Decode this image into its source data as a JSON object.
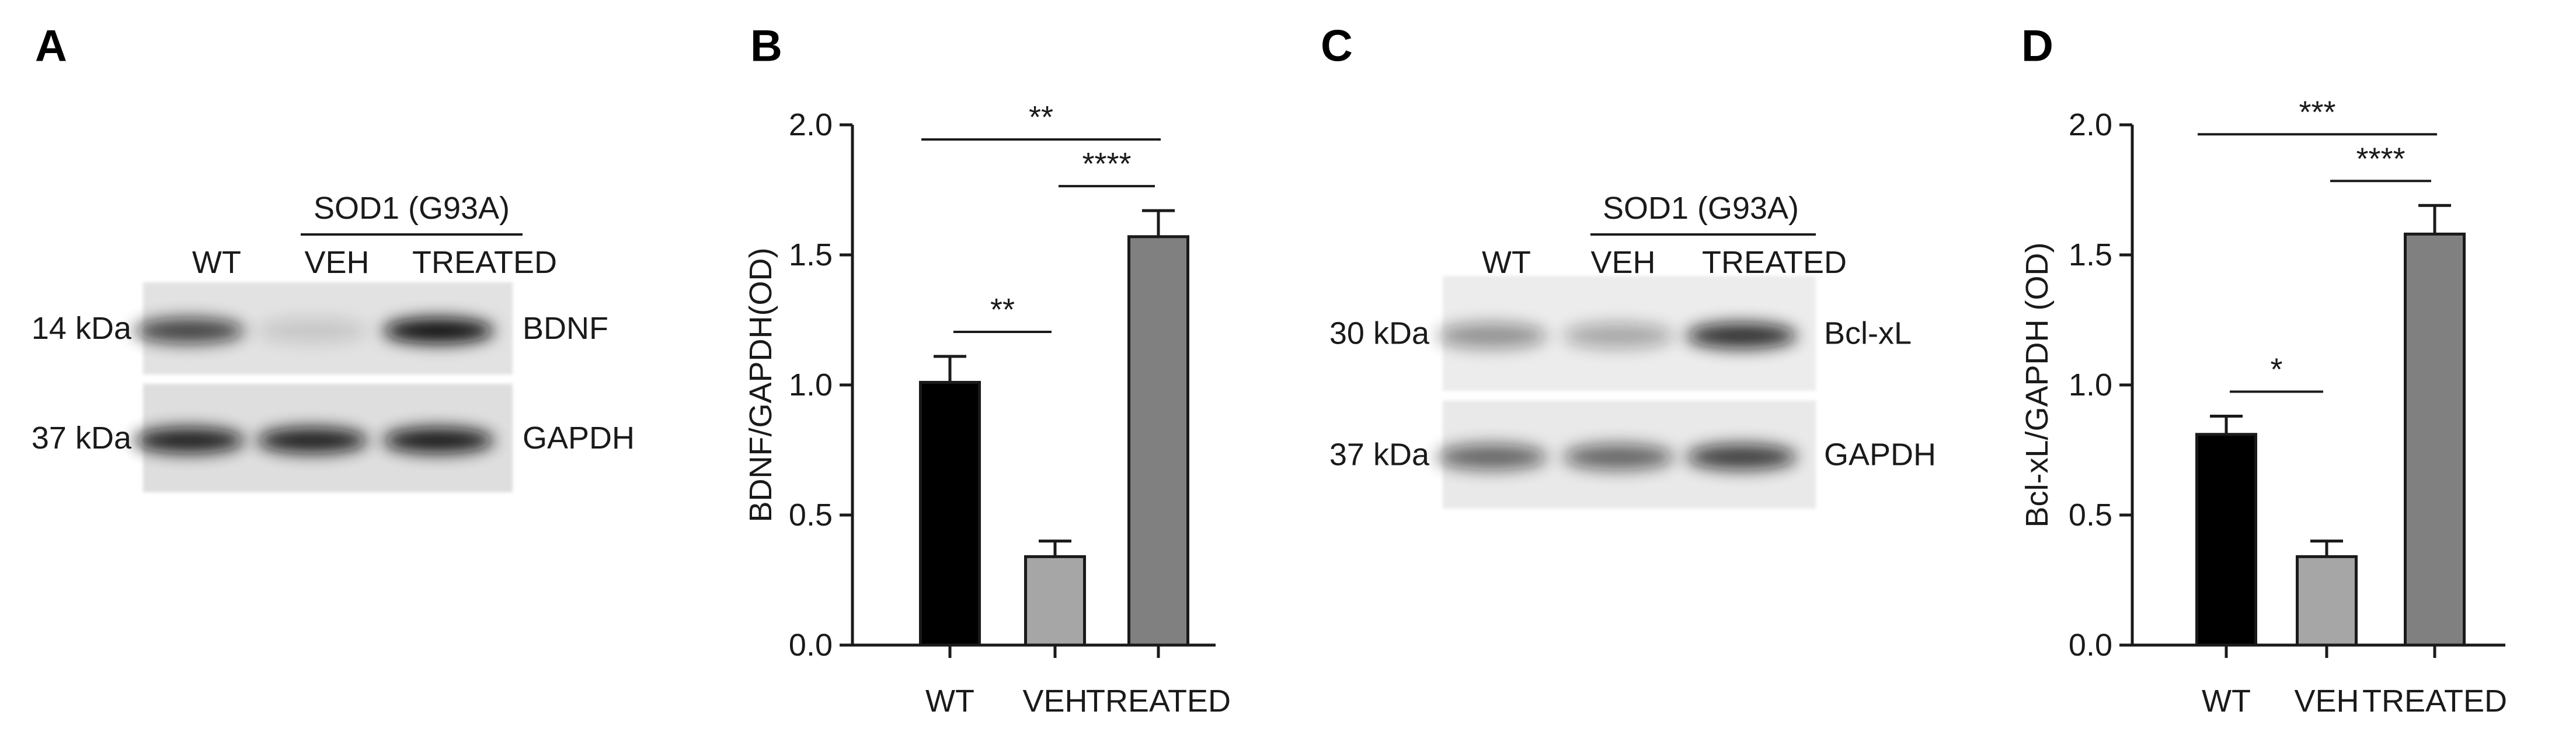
{
  "panel_labels": [
    "A",
    "B",
    "C",
    "D"
  ],
  "blots": [
    {
      "group": "SOD1 (G93A)",
      "lanes": [
        "WT",
        "VEH",
        "TREATED"
      ],
      "rows": [
        {
          "size": "14 kDa",
          "protein": "BDNF"
        },
        {
          "size": "37 kDa",
          "protein": "GAPDH"
        }
      ]
    },
    {
      "group": "SOD1 (G93A)",
      "lanes": [
        "WT",
        "VEH",
        "TREATED"
      ],
      "rows": [
        {
          "size": "30 kDa",
          "protein": "Bcl-xL"
        },
        {
          "size": "37 kDa",
          "protein": "GAPDH"
        }
      ]
    }
  ],
  "chart_data": [
    {
      "type": "bar",
      "ylabel": "BDNF/GAPDH(OD)",
      "categories": [
        "WT",
        "VEH",
        "TREATED"
      ],
      "values": [
        1.01,
        0.34,
        1.57
      ],
      "errors": [
        0.1,
        0.06,
        0.1
      ],
      "colors": [
        "#000000",
        "#a6a6a6",
        "#808080"
      ],
      "ylim": [
        0,
        2
      ],
      "yticks": [
        {
          "value": 0,
          "label": "0.0"
        },
        0.5,
        {
          "value": 1,
          "label": "1.0"
        },
        1.5,
        {
          "value": 2,
          "label": "2.0"
        }
      ],
      "significance": [
        {
          "pair": [
            "WT",
            "VEH"
          ],
          "label": "**"
        },
        {
          "pair": [
            "VEH",
            "TREATED"
          ],
          "label": "****"
        },
        {
          "pair": [
            "WT",
            "TREATED"
          ],
          "label": "**"
        }
      ]
    },
    {
      "type": "bar",
      "ylabel": "Bcl-xL/GAPDH (OD)",
      "categories": [
        "WT",
        "VEH",
        "TREATED"
      ],
      "values": [
        0.81,
        0.34,
        1.58
      ],
      "errors": [
        0.07,
        0.06,
        0.11
      ],
      "colors": [
        "#000000",
        "#a6a6a6",
        "#808080"
      ],
      "ylim": [
        0,
        2
      ],
      "yticks": [
        {
          "value": 0,
          "label": "0.0"
        },
        0.5,
        {
          "value": 1,
          "label": "1.0"
        },
        1.5,
        {
          "value": 2,
          "label": "2.0"
        }
      ],
      "significance": [
        {
          "pair": [
            "WT",
            "VEH"
          ],
          "label": "*"
        },
        {
          "pair": [
            "VEH",
            "TREATED"
          ],
          "label": "****"
        },
        {
          "pair": [
            "WT",
            "TREATED"
          ],
          "label": "***"
        }
      ]
    }
  ]
}
